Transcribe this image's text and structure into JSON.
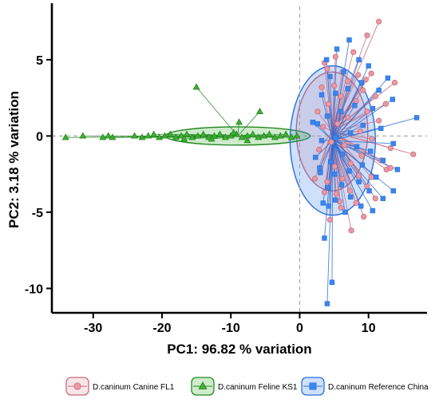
{
  "chart_data": {
    "type": "scatter",
    "xlabel": "PC1:  96.82 % variation",
    "ylabel": "PC2:  3.18 % variation",
    "xlim": [
      -36,
      18.5
    ],
    "ylim": [
      -11.6,
      8.5
    ],
    "xticks": [
      -30,
      -20,
      -10,
      0,
      10
    ],
    "yticks": [
      -10,
      -5,
      0,
      5
    ],
    "grid": false,
    "zero_lines": true,
    "legend_position": "bottom",
    "biplot_lines_to_centroid": true,
    "series": [
      {
        "name": "D.caninum Canine FL1",
        "marker": "circle",
        "color": "#c86a78",
        "fill": "#e89aa6",
        "centroid": [
          4.7,
          0.3
        ],
        "ellipse": {
          "center": [
            4.7,
            0.3
          ],
          "rx": 5.2,
          "ry": 3.9
        },
        "points": [
          [
            11.5,
            7.5
          ],
          [
            9.8,
            6.6
          ],
          [
            7.8,
            5.5
          ],
          [
            5.2,
            5.2
          ],
          [
            3.6,
            4.8
          ],
          [
            4.0,
            4.4
          ],
          [
            6.2,
            4.2
          ],
          [
            8.5,
            4.0
          ],
          [
            10.4,
            4.1
          ],
          [
            9.6,
            3.7
          ],
          [
            7.0,
            3.6
          ],
          [
            5.0,
            3.3
          ],
          [
            3.2,
            3.2
          ],
          [
            9.2,
            3.0
          ],
          [
            13.8,
            3.5
          ],
          [
            11.0,
            2.6
          ],
          [
            12.5,
            2.1
          ],
          [
            8.2,
            2.3
          ],
          [
            6.0,
            2.6
          ],
          [
            4.2,
            2.1
          ],
          [
            2.6,
            1.6
          ],
          [
            9.8,
            1.6
          ],
          [
            11.5,
            1.0
          ],
          [
            7.0,
            1.2
          ],
          [
            5.5,
            0.8
          ],
          [
            3.4,
            0.6
          ],
          [
            8.8,
            0.3
          ],
          [
            10.5,
            -0.2
          ],
          [
            13.2,
            -0.8
          ],
          [
            4.6,
            -0.4
          ],
          [
            6.5,
            -0.6
          ],
          [
            2.8,
            -0.9
          ],
          [
            16.5,
            -1.2
          ],
          [
            9.0,
            -1.3
          ],
          [
            11.8,
            -1.6
          ],
          [
            7.4,
            -1.8
          ],
          [
            5.1,
            -2.0
          ],
          [
            3.0,
            -2.1
          ],
          [
            12.6,
            -2.2
          ],
          [
            8.6,
            -2.6
          ],
          [
            10.4,
            -2.7
          ],
          [
            6.2,
            -2.8
          ],
          [
            4.0,
            -3.0
          ],
          [
            13.2,
            -2.1
          ],
          [
            9.8,
            -3.3
          ],
          [
            7.3,
            -3.6
          ],
          [
            5.3,
            -3.8
          ],
          [
            3.6,
            -3.7
          ],
          [
            11.0,
            -4.1
          ],
          [
            8.2,
            -4.4
          ],
          [
            6.0,
            -4.7
          ],
          [
            9.3,
            -5.3
          ],
          [
            7.5,
            -6.2
          ],
          [
            4.4,
            -5.5
          ],
          [
            5.8,
            -4.3
          ],
          [
            2.2,
            -2.8
          ]
        ]
      },
      {
        "name": "D.caninum Feline KS1",
        "marker": "triangle",
        "color": "#22881f",
        "fill": "#3fae33",
        "centroid": [
          -9.0,
          0.0
        ],
        "ellipse": {
          "center": [
            -9.0,
            0.0
          ],
          "rx": 10.5,
          "ry": 0.6
        },
        "points": [
          [
            -34.0,
            -0.1
          ],
          [
            -31.5,
            0.0
          ],
          [
            -28.6,
            -0.1
          ],
          [
            -27.8,
            0.0
          ],
          [
            -27.2,
            -0.1
          ],
          [
            -24.0,
            0.0
          ],
          [
            -22.9,
            -0.1
          ],
          [
            -22.0,
            0.0
          ],
          [
            -21.2,
            0.1
          ],
          [
            -20.4,
            -0.1
          ],
          [
            -19.6,
            0.0
          ],
          [
            -18.8,
            0.1
          ],
          [
            -18.0,
            -0.1
          ],
          [
            -17.2,
            0.0
          ],
          [
            -16.4,
            0.1
          ],
          [
            -15.6,
            -0.1
          ],
          [
            -15.0,
            3.2
          ],
          [
            -14.8,
            0.0
          ],
          [
            -14.0,
            0.1
          ],
          [
            -13.2,
            -0.1
          ],
          [
            -12.4,
            0.0
          ],
          [
            -11.6,
            0.1
          ],
          [
            -10.8,
            -0.1
          ],
          [
            -10.0,
            0.0
          ],
          [
            -9.2,
            0.1
          ],
          [
            -8.8,
            0.9
          ],
          [
            -8.4,
            -0.1
          ],
          [
            -7.6,
            0.0
          ],
          [
            -7.6,
            -0.3
          ],
          [
            -6.8,
            0.1
          ],
          [
            -6.0,
            -0.1
          ],
          [
            -5.8,
            1.6
          ],
          [
            -5.2,
            0.0
          ],
          [
            -4.4,
            0.1
          ],
          [
            -3.6,
            -0.1
          ],
          [
            -2.8,
            0.0
          ],
          [
            -2.0,
            0.1
          ],
          [
            -1.2,
            -0.1
          ],
          [
            -0.4,
            0.0
          ],
          [
            -9.6,
            0.2
          ],
          [
            -12.8,
            -0.2
          ],
          [
            -16.8,
            -0.2
          ]
        ]
      },
      {
        "name": "D.caninum Reference China",
        "marker": "square",
        "color": "#2a6fd8",
        "fill": "#3a85ef",
        "centroid": [
          4.8,
          -0.3
        ],
        "ellipse": {
          "center": [
            4.8,
            -0.3
          ],
          "rx": 6.2,
          "ry": 4.9
        },
        "points": [
          [
            7.2,
            6.3
          ],
          [
            5.4,
            5.7
          ],
          [
            3.9,
            5.0
          ],
          [
            8.6,
            5.0
          ],
          [
            10.0,
            4.6
          ],
          [
            6.4,
            4.2
          ],
          [
            4.4,
            3.9
          ],
          [
            12.8,
            3.8
          ],
          [
            9.0,
            3.5
          ],
          [
            7.0,
            3.1
          ],
          [
            11.5,
            3.0
          ],
          [
            5.2,
            2.8
          ],
          [
            3.2,
            2.7
          ],
          [
            13.5,
            2.4
          ],
          [
            8.0,
            2.0
          ],
          [
            10.6,
            1.8
          ],
          [
            6.0,
            1.6
          ],
          [
            4.0,
            1.3
          ],
          [
            2.6,
            0.8
          ],
          [
            17.0,
            1.2
          ],
          [
            9.2,
            0.7
          ],
          [
            11.8,
            0.5
          ],
          [
            7.4,
            0.2
          ],
          [
            5.2,
            -0.1
          ],
          [
            3.2,
            -0.3
          ],
          [
            13.6,
            -0.5
          ],
          [
            8.3,
            -0.7
          ],
          [
            10.3,
            -1.0
          ],
          [
            6.2,
            -1.2
          ],
          [
            2.3,
            -1.4
          ],
          [
            12.1,
            -1.6
          ],
          [
            4.5,
            -1.7
          ],
          [
            9.1,
            -1.9
          ],
          [
            14.2,
            -2.2
          ],
          [
            7.2,
            -2.3
          ],
          [
            5.1,
            -2.5
          ],
          [
            3.0,
            -2.4
          ],
          [
            11.1,
            -2.7
          ],
          [
            13.6,
            -3.6
          ],
          [
            8.6,
            -3.0
          ],
          [
            6.1,
            -3.2
          ],
          [
            4.1,
            -3.4
          ],
          [
            10.1,
            -3.6
          ],
          [
            12.1,
            -4.1
          ],
          [
            7.4,
            -4.0
          ],
          [
            5.2,
            -4.2
          ],
          [
            8.9,
            -4.6
          ],
          [
            3.4,
            -4.4
          ],
          [
            10.6,
            -4.9
          ],
          [
            6.6,
            -5.0
          ],
          [
            4.2,
            -4.6
          ],
          [
            4.7,
            -9.6
          ],
          [
            4.0,
            -11.0
          ],
          [
            3.6,
            -6.7
          ],
          [
            2.9,
            -2.1
          ],
          [
            1.9,
            0.9
          ]
        ]
      }
    ]
  }
}
